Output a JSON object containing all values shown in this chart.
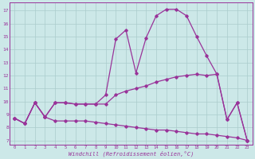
{
  "xlabel": "Windchill (Refroidissement éolien,°C)",
  "bg_color": "#cce8e8",
  "line_color": "#993399",
  "grid_color": "#aacccc",
  "yticks": [
    7,
    8,
    9,
    10,
    11,
    12,
    13,
    14,
    15,
    16,
    17
  ],
  "line1_x": [
    0,
    1,
    2,
    3,
    4,
    5,
    6,
    7,
    8,
    9,
    10,
    11,
    12,
    13,
    14,
    15,
    16,
    17,
    18,
    19,
    20,
    21,
    22,
    23
  ],
  "line1_y": [
    8.7,
    8.3,
    9.9,
    8.8,
    8.5,
    8.5,
    8.5,
    8.5,
    8.4,
    8.3,
    8.2,
    8.1,
    8.0,
    7.9,
    7.8,
    7.8,
    7.7,
    7.6,
    7.5,
    7.5,
    7.4,
    7.3,
    7.2,
    7.0
  ],
  "line2_x": [
    0,
    1,
    2,
    3,
    4,
    5,
    6,
    7,
    8,
    9,
    10,
    11,
    12,
    13,
    14,
    15,
    16,
    17,
    18,
    19,
    20,
    21,
    22,
    23
  ],
  "line2_y": [
    8.7,
    8.3,
    9.9,
    8.8,
    9.9,
    9.9,
    9.8,
    9.8,
    9.8,
    9.8,
    10.5,
    10.8,
    11.0,
    11.2,
    11.5,
    11.7,
    11.9,
    12.0,
    12.1,
    12.0,
    12.1,
    8.6,
    9.9,
    7.0
  ],
  "line3_x": [
    0,
    1,
    2,
    3,
    4,
    5,
    6,
    7,
    8,
    9,
    10,
    11,
    12,
    13,
    14,
    15,
    16,
    17,
    18,
    19,
    20,
    21,
    22,
    23
  ],
  "line3_y": [
    8.7,
    8.3,
    9.9,
    8.8,
    9.9,
    9.9,
    9.8,
    9.8,
    9.8,
    10.5,
    14.8,
    15.5,
    12.2,
    14.9,
    16.6,
    17.1,
    17.1,
    16.6,
    15.0,
    13.5,
    12.1,
    8.6,
    9.9,
    7.0
  ],
  "xlim_min": -0.5,
  "xlim_max": 23.5,
  "ylim_min": 6.7,
  "ylim_max": 17.6
}
